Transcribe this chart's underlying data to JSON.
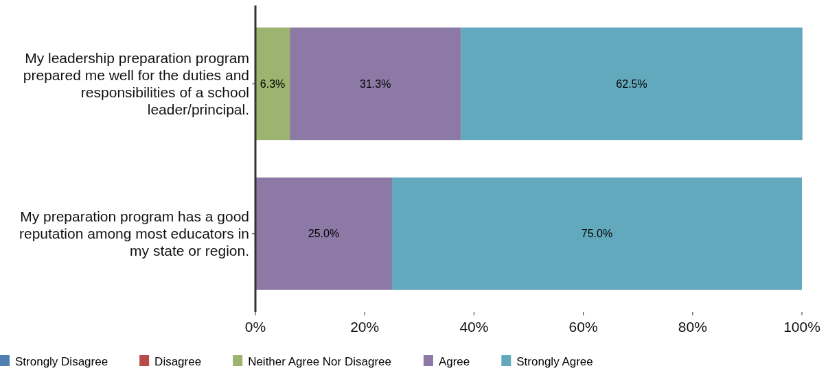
{
  "chart_data": {
    "type": "bar",
    "orientation": "horizontal",
    "stacked": true,
    "categories": [
      "My leadership preparation program prepared me well for the duties and responsibilities of a school leader/principal.",
      "My preparation program has a good reputation among most educators in my state or region."
    ],
    "series": [
      {
        "name": "Strongly Disagree",
        "color": "#4f7fb3",
        "values": [
          0,
          0
        ],
        "value_labels": [
          null,
          null
        ]
      },
      {
        "name": "Disagree",
        "color": "#b94a48",
        "values": [
          0,
          0
        ],
        "value_labels": [
          null,
          null
        ]
      },
      {
        "name": "Neither Agree Nor Disagree",
        "color": "#9bb46f",
        "values": [
          6.3,
          0
        ],
        "value_labels": [
          "6.3%",
          null
        ]
      },
      {
        "name": "Agree",
        "color": "#8c79a5",
        "values": [
          31.3,
          25.0
        ],
        "value_labels": [
          "31.3%",
          "25.0%"
        ]
      },
      {
        "name": "Strongly Agree",
        "color": "#63a9bd",
        "values": [
          62.5,
          75.0
        ],
        "value_labels": [
          "62.5%",
          "75.0%"
        ]
      }
    ],
    "xlim": [
      0,
      100
    ],
    "xticks": [
      {
        "value": 0,
        "label": "0%"
      },
      {
        "value": 20,
        "label": "20%"
      },
      {
        "value": 40,
        "label": "40%"
      },
      {
        "value": 60,
        "label": "60%"
      },
      {
        "value": 80,
        "label": "80%"
      },
      {
        "value": 100,
        "label": "100%"
      }
    ],
    "grid": false,
    "legend": "bottom"
  }
}
